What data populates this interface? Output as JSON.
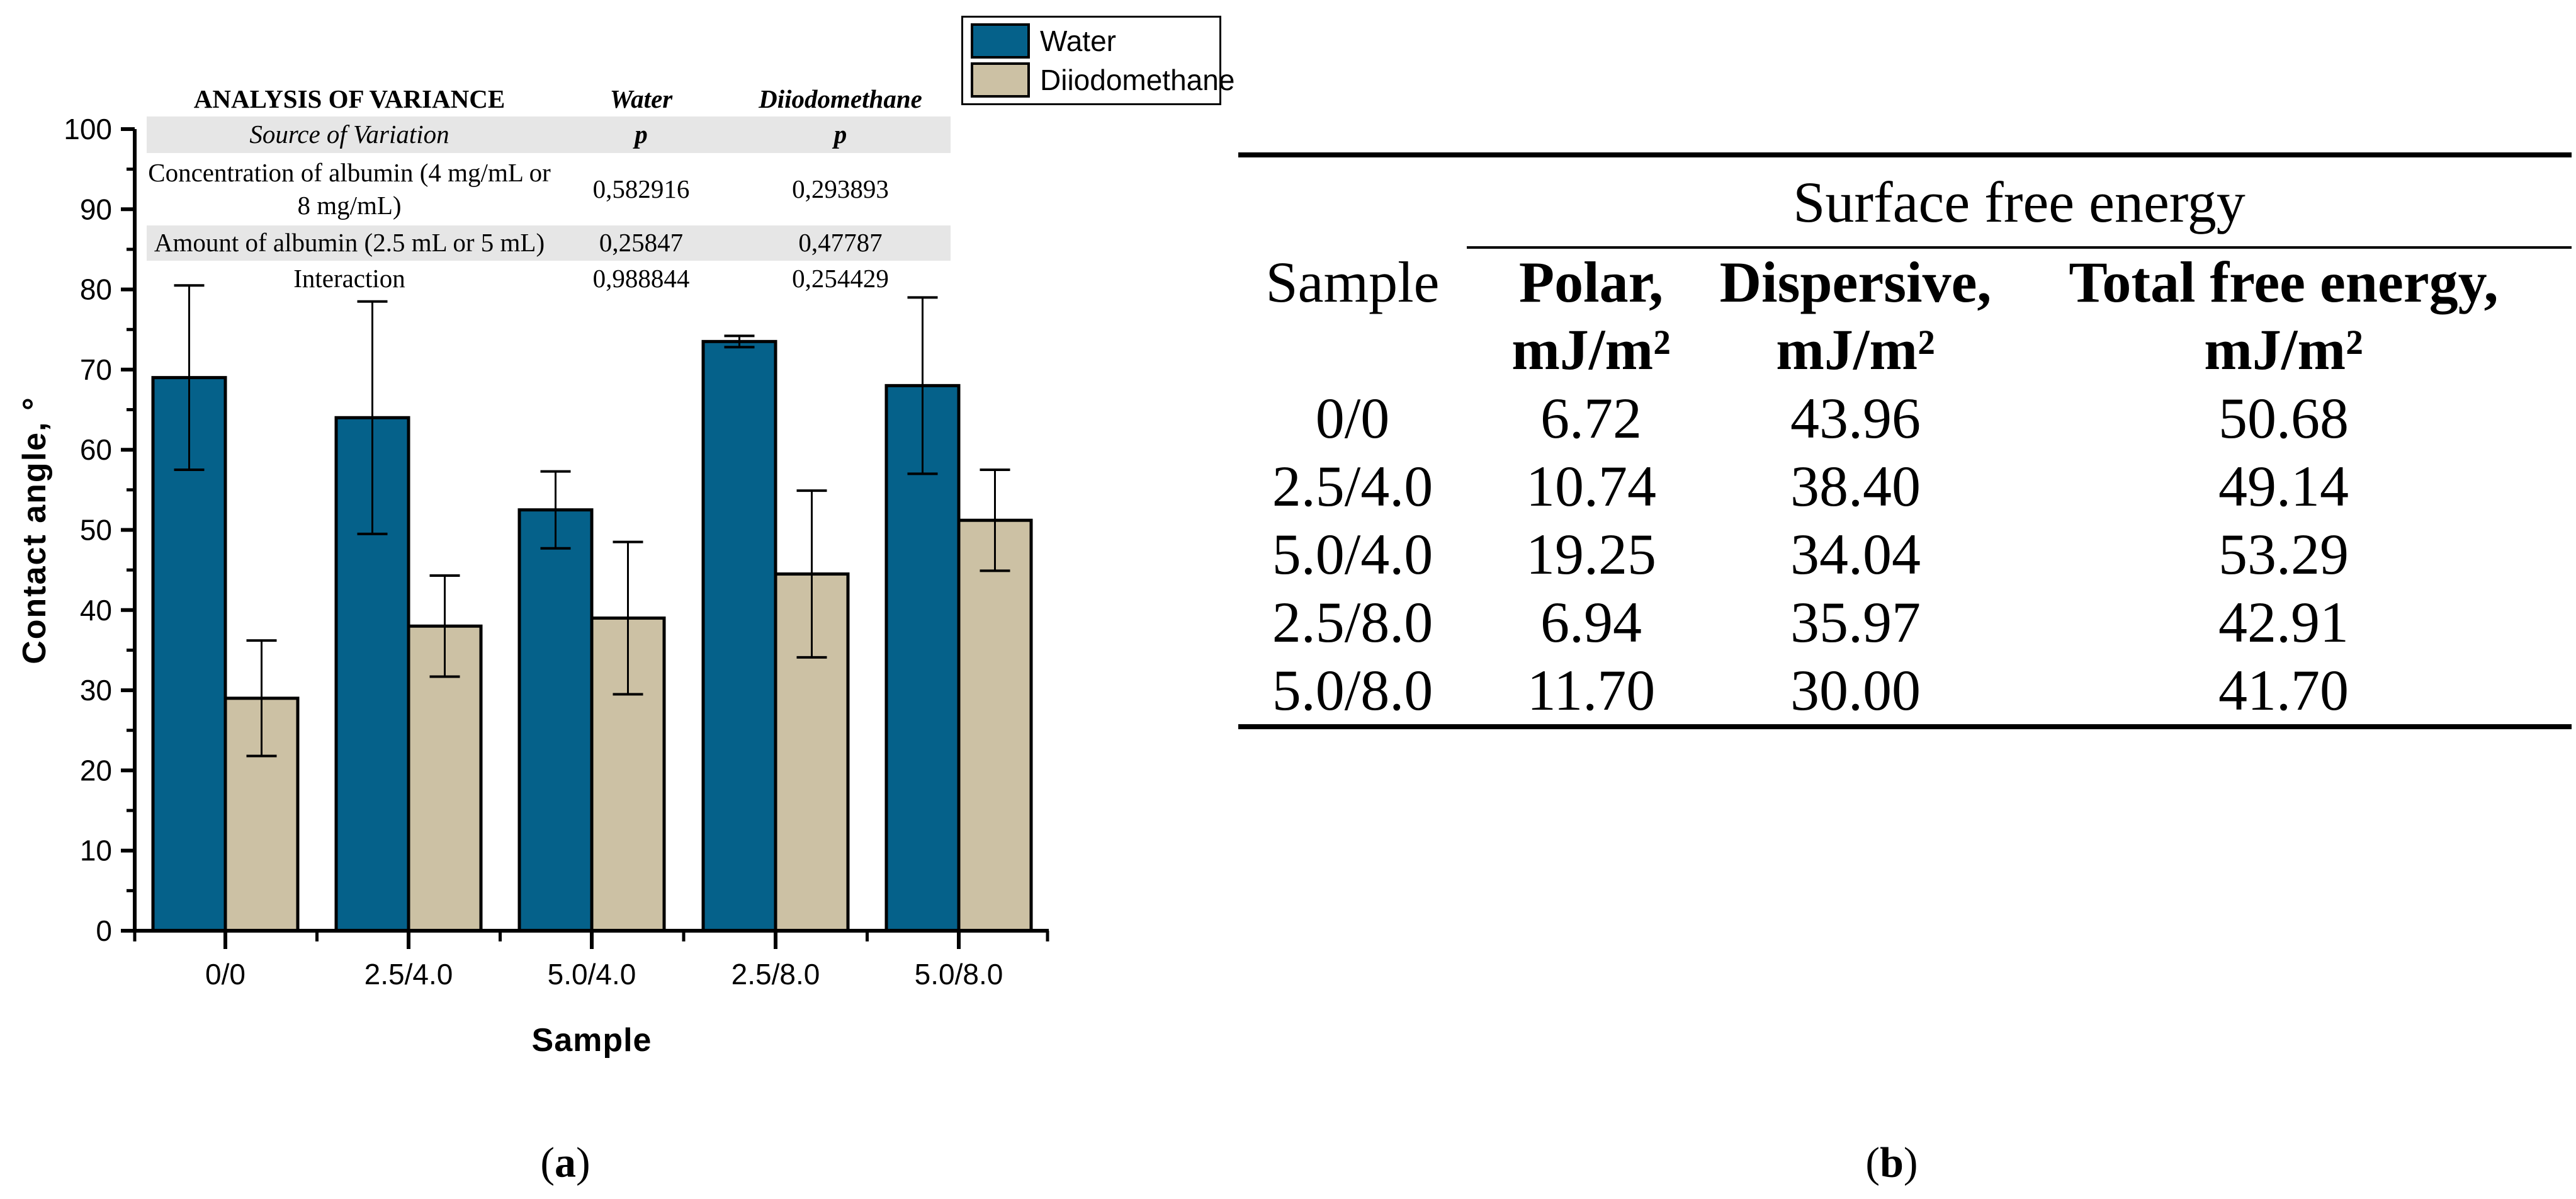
{
  "colors": {
    "water": "#05618A",
    "diiodomethane": "#CCC1A4",
    "bar_edge": "#000000",
    "anova_shade": "#E6E6E6"
  },
  "legend": {
    "items": [
      {
        "label": "Water",
        "color": "#05618A"
      },
      {
        "label": "Diiodomethane",
        "color": "#CCC1A4"
      }
    ]
  },
  "anova": {
    "title": "ANALYSIS OF VARIANCE",
    "col_water": "Water",
    "col_diiodomethane": "Diiodomethane",
    "source_label": "Source of Variation",
    "p_water": "p",
    "p_diiodomethane": "p",
    "rows": [
      {
        "label": "Concentration of albumin (4 mg/mL or 8 mg/mL)",
        "water": "0,582916",
        "diiodomethane": "0,293893"
      },
      {
        "label": "Amount of albumin (2.5 mL or 5 mL)",
        "water": "0,25847",
        "diiodomethane": "0,47787"
      },
      {
        "label": "Interaction",
        "water": "0,988844",
        "diiodomethane": "0,254429"
      }
    ]
  },
  "chart_data": {
    "type": "bar",
    "title": "",
    "xlabel": "Sample",
    "ylabel": "Contact angle, °",
    "ylim": [
      0,
      100
    ],
    "ytick_step": 10,
    "ytick_minor_step": 5,
    "grid": false,
    "legend_position": "top-right",
    "categories": [
      "0/0",
      "2.5/4.0",
      "5.0/4.0",
      "2.5/8.0",
      "5.0/8.0"
    ],
    "series": [
      {
        "name": "Water",
        "color": "#05618A",
        "values": [
          69,
          64,
          52.5,
          73.5,
          68
        ],
        "errors": [
          11.5,
          14.5,
          4.8,
          0.7,
          11
        ]
      },
      {
        "name": "Diiodomethane",
        "color": "#CCC1A4",
        "values": [
          29,
          38,
          39,
          44.5,
          51.2
        ],
        "errors": [
          7.2,
          6.3,
          9.5,
          10.4,
          6.3
        ]
      }
    ]
  },
  "surface_table": {
    "group_header": "Surface free energy",
    "col_sample": "Sample",
    "columns": [
      {
        "title": "Polar,",
        "unit": "mJ/m²"
      },
      {
        "title": "Dispersive,",
        "unit": "mJ/m²"
      },
      {
        "title": "Total free energy,",
        "unit": "mJ/m²"
      }
    ],
    "rows": [
      {
        "sample": "0/0",
        "polar": "6.72",
        "dispersive": "43.96",
        "total": "50.68"
      },
      {
        "sample": "2.5/4.0",
        "polar": "10.74",
        "dispersive": "38.40",
        "total": "49.14"
      },
      {
        "sample": "5.0/4.0",
        "polar": "19.25",
        "dispersive": "34.04",
        "total": "53.29"
      },
      {
        "sample": "2.5/8.0",
        "polar": "6.94",
        "dispersive": "35.97",
        "total": "42.91"
      },
      {
        "sample": "5.0/8.0",
        "polar": "11.70",
        "dispersive": "30.00",
        "total": "41.70"
      }
    ]
  },
  "captions": {
    "a": {
      "pre": "(",
      "letter": "a",
      "post": ")"
    },
    "b": {
      "pre": "(",
      "letter": "b",
      "post": ")"
    }
  }
}
